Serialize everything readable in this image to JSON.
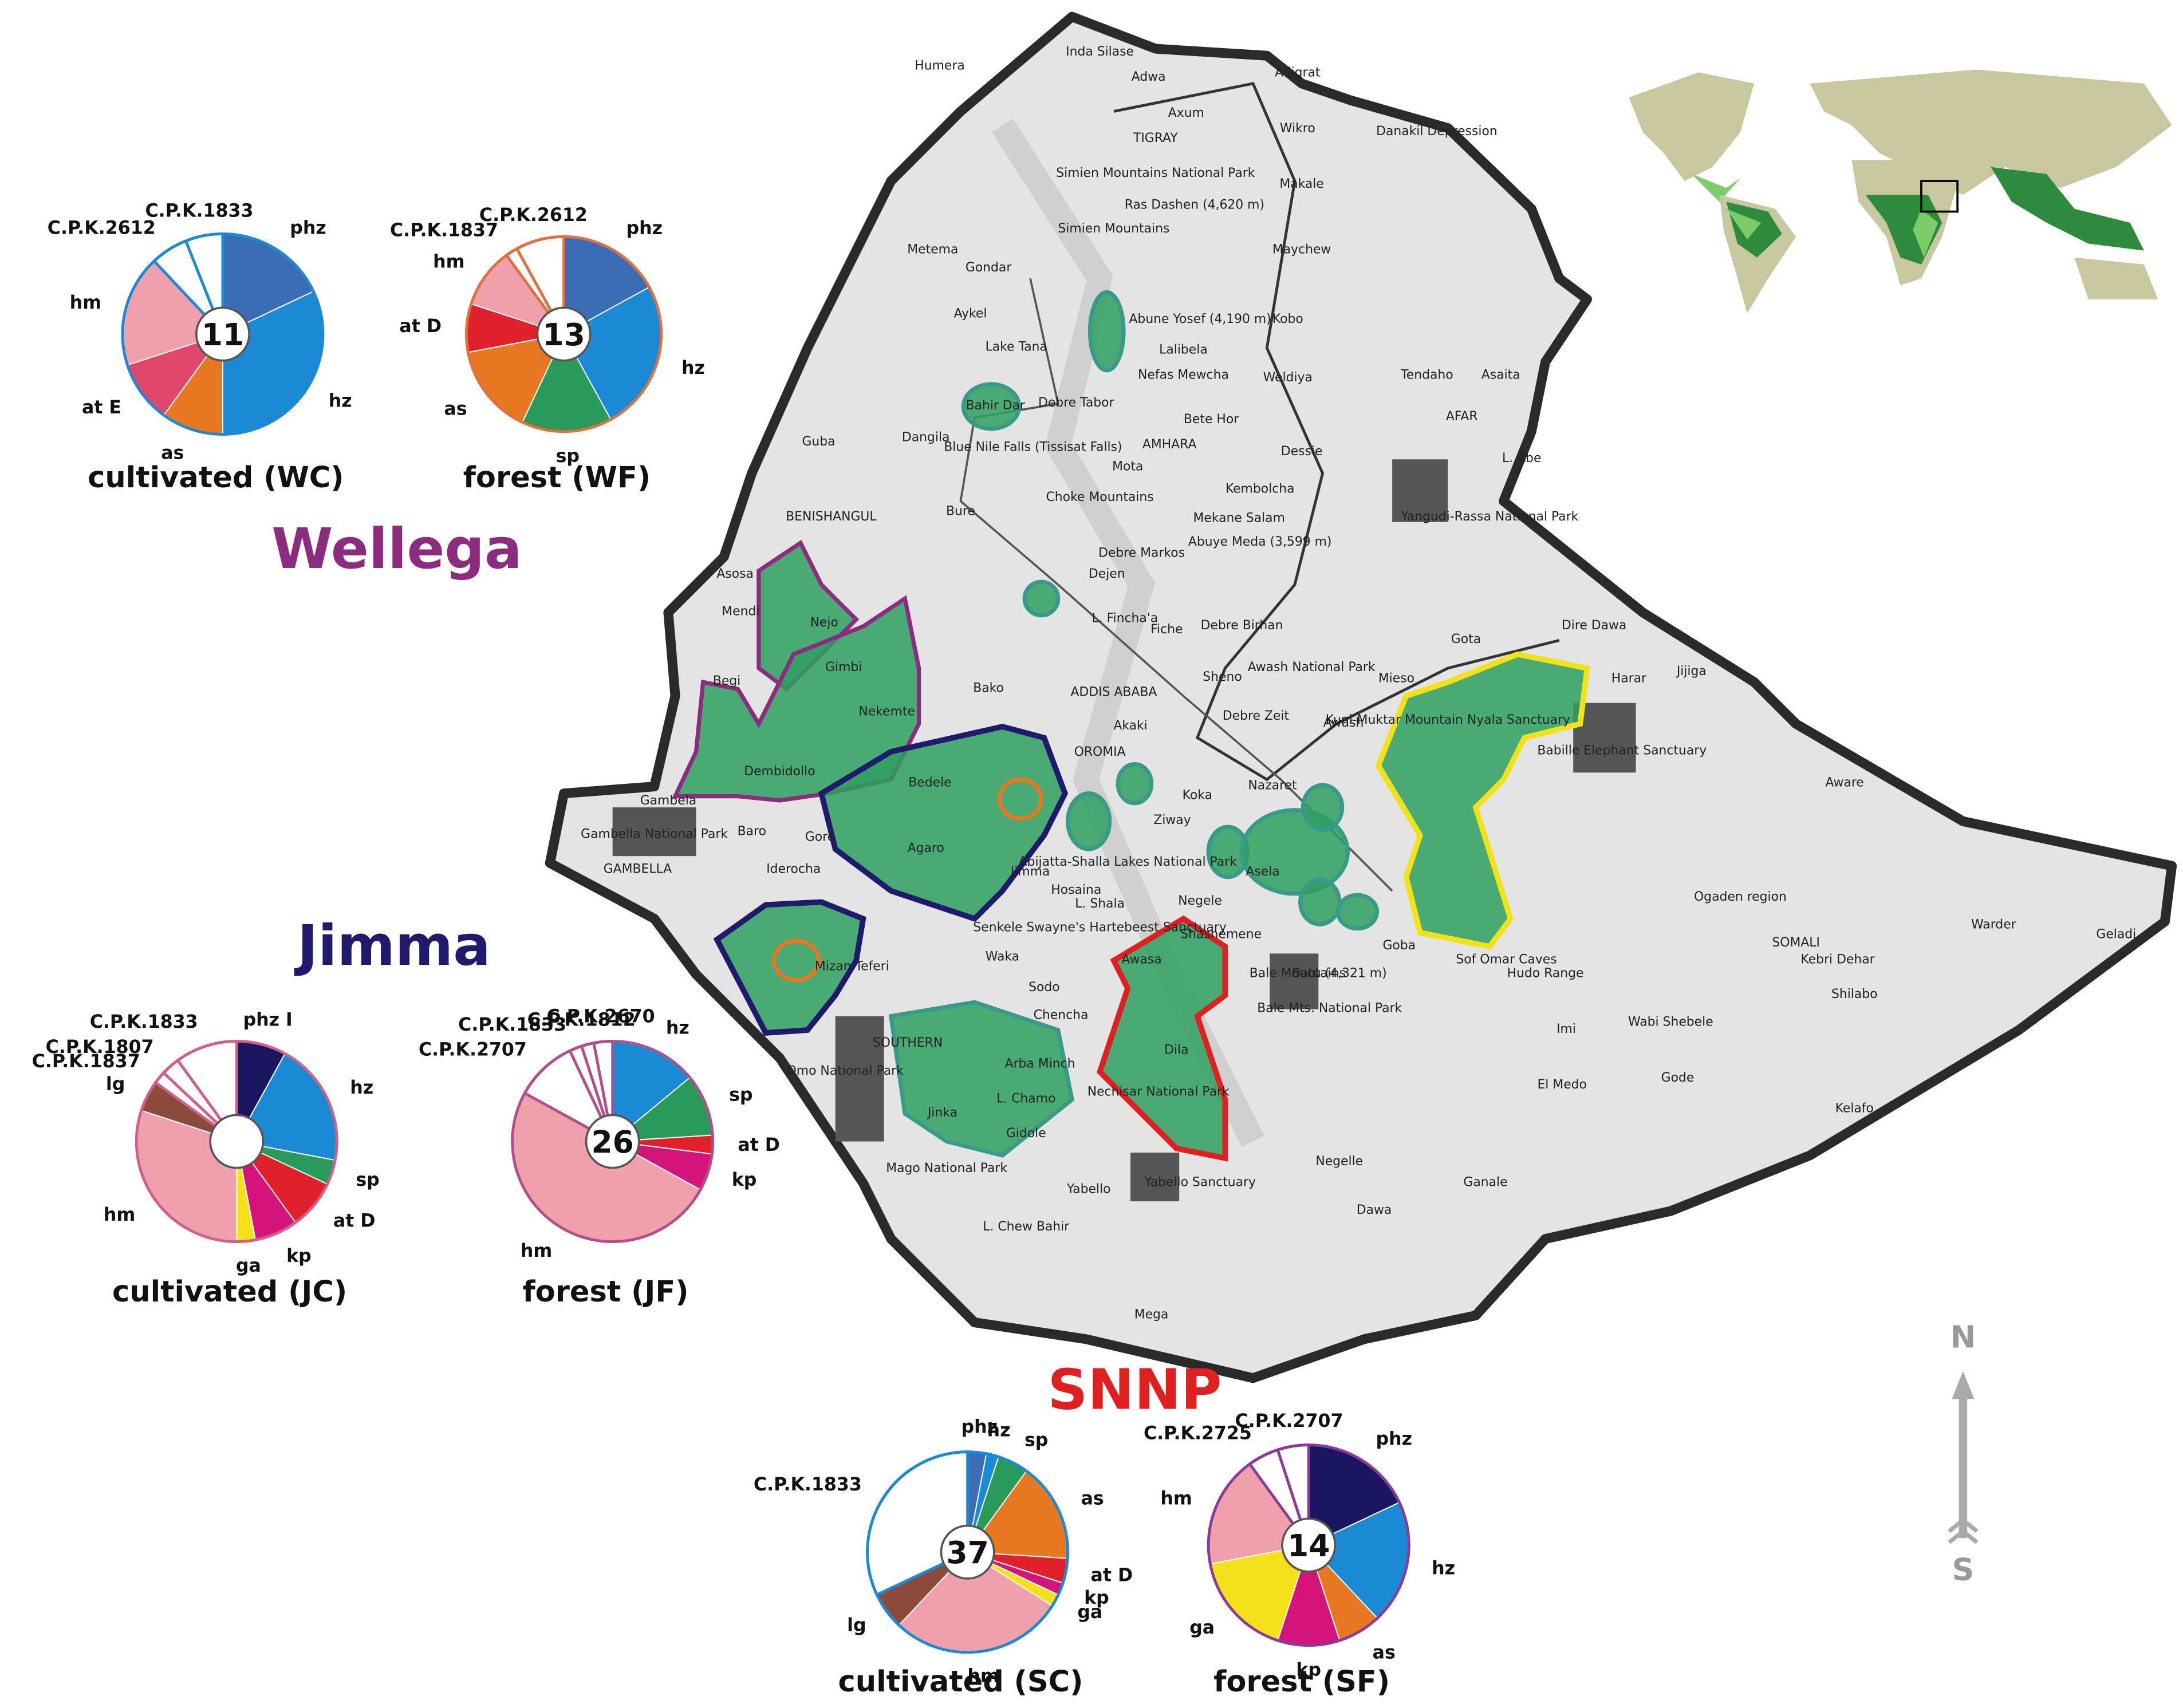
{
  "chart_data": [
    {
      "type": "pie",
      "center_label": 11,
      "caption": "cultivated (WC)",
      "edge_color": "#1a8ad4",
      "categories": [
        "phz",
        "hz",
        "as",
        "at E",
        "hm",
        "C.P.K.2612",
        "C.P.K.1833"
      ],
      "values": [
        18,
        32,
        10,
        10,
        18,
        6,
        6
      ],
      "colors": [
        "#3a6db5",
        "#1a8ad4",
        "#e87722",
        "#e0476a",
        "#f0a0aa",
        "#ffffff",
        "#ffffff"
      ]
    },
    {
      "type": "pie",
      "center_label": 13,
      "caption": "forest (WF)",
      "edge_color": "#e07040",
      "categories": [
        "phz",
        "hz",
        "sp",
        "as",
        "at D",
        "hm",
        "C.P.K.1837",
        "C.P.K.2612"
      ],
      "values": [
        17,
        25,
        15,
        15,
        8,
        10,
        2,
        8
      ],
      "colors": [
        "#3a6db5",
        "#1a8ad4",
        "#2a9a5a",
        "#e87722",
        "#e0202a",
        "#f0a0aa",
        "#ffffff",
        "#ffffff"
      ]
    },
    {
      "type": "pie",
      "caption": "cultivated (JC)",
      "edge_color": "#d0608a",
      "categories": [
        "phz I",
        "hz",
        "sp",
        "at D",
        "kp",
        "ga",
        "hm",
        "lg",
        "C.P.K.1837",
        "C.P.K.1807",
        "C.P.K.1833"
      ],
      "values": [
        8,
        20,
        4,
        8,
        7,
        3,
        30,
        5,
        2,
        3,
        10
      ],
      "colors": [
        "#1a1760",
        "#1a8ad4",
        "#2a9a5a",
        "#e0202a",
        "#d4147a",
        "#f5e11a",
        "#f0a0aa",
        "#8b4a3a",
        "#ffffff",
        "#ffffff",
        "#ffffff"
      ]
    },
    {
      "type": "pie",
      "center_label": 26,
      "caption": "forest (JF)",
      "edge_color": "#b0508a",
      "categories": [
        "hz",
        "sp",
        "at D",
        "kp",
        "hm",
        "C.P.K.2707",
        "C.P.K.1833",
        "C.P.K.1812",
        "C.P.K.2670"
      ],
      "values": [
        14,
        10,
        3,
        6,
        50,
        10,
        2,
        2,
        3
      ],
      "colors": [
        "#1a8ad4",
        "#2a9a5a",
        "#e0202a",
        "#d4147a",
        "#f0a0aa",
        "#ffffff",
        "#ffffff",
        "#ffffff",
        "#ffffff"
      ]
    },
    {
      "type": "pie",
      "center_label": 37,
      "caption": "cultivated (SC)",
      "edge_color": "#1a8ad4",
      "categories": [
        "phz",
        "hz",
        "sp",
        "as",
        "at D",
        "kp",
        "ga",
        "hm",
        "lg",
        "C.P.K.1833"
      ],
      "values": [
        3,
        2,
        5,
        16,
        4,
        2,
        2,
        28,
        6,
        32
      ],
      "colors": [
        "#3a6db5",
        "#1a8ad4",
        "#2a9a5a",
        "#e87722",
        "#e0202a",
        "#d4147a",
        "#f5e11a",
        "#f0a0aa",
        "#8b4a3a",
        "#ffffff"
      ]
    },
    {
      "type": "pie",
      "center_label": 14,
      "caption": "forest (SF)",
      "edge_color": "#8a3a9a",
      "categories": [
        "phz",
        "hz",
        "as",
        "kp",
        "ga",
        "hm",
        "C.P.K.2725",
        "C.P.K.2707"
      ],
      "values": [
        18,
        20,
        7,
        10,
        17,
        18,
        5,
        5
      ],
      "colors": [
        "#1a1760",
        "#1a8ad4",
        "#e87722",
        "#d4147a",
        "#f5e11a",
        "#f0a0aa",
        "#ffffff",
        "#ffffff"
      ]
    }
  ],
  "regions": [
    {
      "name": "Wellega",
      "color": "#8b2c7e"
    },
    {
      "name": "Jimma",
      "color": "#1f1a6b"
    },
    {
      "name": "SNNP",
      "color": "#e02020"
    }
  ],
  "compass": {
    "north": "N",
    "south": "S"
  },
  "map": {
    "places": [
      "Humera",
      "Inda Silase",
      "Adwa",
      "Adigrat",
      "Axum",
      "TIGRAY",
      "Wikro",
      "Danakil Depression",
      "Simien Mountains National Park",
      "Ras Dashen (4,620 m)",
      "Simien Mountains",
      "Makale",
      "Maychew",
      "Metema",
      "Gondar",
      "Aykel",
      "Abune Yosef (4,190 m)",
      "Kobo",
      "Lake Tana",
      "Lalibela",
      "Nefas Mewcha",
      "Weldiya",
      "Tendaho",
      "Asaita",
      "Bahir Dar",
      "Debre Tabor",
      "Bete Hor",
      "AFAR",
      "Dangila",
      "Guba",
      "Blue Nile Falls (Tissisat Falls)",
      "AMHARA",
      "Dessie",
      "L. Abe",
      "Mota",
      "Choke Mountains",
      "Kembolcha",
      "Yangudi-Rassa National Park",
      "Bure",
      "BENISHANGUL",
      "Mekane Salam",
      "Abuye Meda (3,599 m)",
      "Debre Markos",
      "Asosa",
      "Dejen",
      "Mendi",
      "Nejo",
      "Debre Birhan",
      "Dire Dawa",
      "Gota",
      "Fiche",
      "Gimbi",
      "L. Fincha'a",
      "Awash National Park",
      "Mieso",
      "Harar",
      "Jijiga",
      "Begi",
      "Bako",
      "ADDIS ABABA",
      "Nekemte",
      "Sheno",
      "Debre Zeit",
      "Akaki",
      "Awash",
      "Babille Elephant Sanctuary",
      "Dembidollo",
      "Bedele",
      "Nazaret",
      "Aware",
      "Gambela",
      "Gambella National Park",
      "GAMBELLA",
      "Baro",
      "Gore",
      "Agaro",
      "Ziway",
      "Koka",
      "Asela",
      "Iderocha",
      "Jimma",
      "Hosaina",
      "Abijatta-Shalla Lakes National Park",
      "Ogaden region",
      "SOMALI",
      "Negele",
      "L. Shala",
      "Senkele Swayne's Hartebeest Sanctuary",
      "Shashemene",
      "Warder",
      "Geladi",
      "Goba",
      "Mizan Teferi",
      "Bale Mountains",
      "Waka",
      "Awasa",
      "Batu (4,321 m)",
      "Kebri Dehar",
      "Sof Omar Caves",
      "Bale Mts. National Park",
      "Sodo",
      "Dila",
      "Hudo Range",
      "Shilabo",
      "Chencha",
      "Imi",
      "Wabi Shebele",
      "SOUTHERN",
      "Arba Minch",
      "Nechisar National Park",
      "Omo National Park",
      "L. Chamo",
      "El Medo",
      "Gode",
      "Kelafo",
      "Jinka",
      "Gidole",
      "Mago National Park",
      "Negelle",
      "Yabello",
      "Yabello Sanctuary",
      "L. Chew Bahir",
      "Dawa",
      "Ganale",
      "Mega",
      "OROMIA",
      "Kuni-Muktar Mountain Nyala Sanctuary"
    ]
  }
}
